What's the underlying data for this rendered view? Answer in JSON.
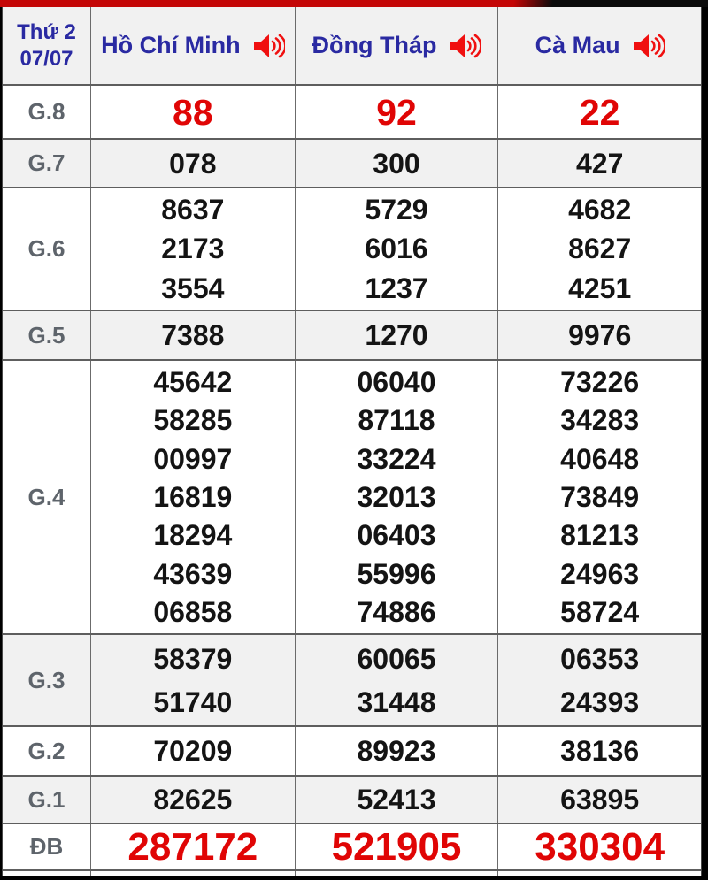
{
  "header": {
    "date_line1": "Thứ 2",
    "date_line2": "07/07",
    "columns": [
      {
        "key": "ho-chi-minh",
        "name": "Hồ Chí Minh",
        "icon": "speaker-icon"
      },
      {
        "key": "dong-thap",
        "name": "Đồng Tháp",
        "icon": "speaker-icon"
      },
      {
        "key": "ca-mau",
        "name": "Cà Mau",
        "icon": "speaker-icon"
      }
    ]
  },
  "prizes": [
    {
      "key": "g8",
      "label": "G.8",
      "highlight": true,
      "values": [
        [
          "88"
        ],
        [
          "92"
        ],
        [
          "22"
        ]
      ]
    },
    {
      "key": "g7",
      "label": "G.7",
      "values": [
        [
          "078"
        ],
        [
          "300"
        ],
        [
          "427"
        ]
      ]
    },
    {
      "key": "g6",
      "label": "G.6",
      "values": [
        [
          "8637",
          "2173",
          "3554"
        ],
        [
          "5729",
          "6016",
          "1237"
        ],
        [
          "4682",
          "8627",
          "4251"
        ]
      ]
    },
    {
      "key": "g5",
      "label": "G.5",
      "values": [
        [
          "7388"
        ],
        [
          "1270"
        ],
        [
          "9976"
        ]
      ]
    },
    {
      "key": "g4",
      "label": "G.4",
      "values": [
        [
          "45642",
          "58285",
          "00997",
          "16819",
          "18294",
          "43639",
          "06858"
        ],
        [
          "06040",
          "87118",
          "33224",
          "32013",
          "06403",
          "55996",
          "74886"
        ],
        [
          "73226",
          "34283",
          "40648",
          "73849",
          "81213",
          "24963",
          "58724"
        ]
      ]
    },
    {
      "key": "g3",
      "label": "G.3",
      "values": [
        [
          "58379",
          "51740"
        ],
        [
          "60065",
          "31448"
        ],
        [
          "06353",
          "24393"
        ]
      ]
    },
    {
      "key": "g2",
      "label": "G.2",
      "values": [
        [
          "70209"
        ],
        [
          "89923"
        ],
        [
          "38136"
        ]
      ]
    },
    {
      "key": "g1",
      "label": "G.1",
      "values": [
        [
          "82625"
        ],
        [
          "52413"
        ],
        [
          "63895"
        ]
      ]
    },
    {
      "key": "db",
      "label": "ĐB",
      "highlight": true,
      "values": [
        [
          "287172"
        ],
        [
          "521905"
        ],
        [
          "330304"
        ]
      ]
    }
  ],
  "colors": {
    "top_strip_red": "#c40606",
    "top_strip_black": "#0b0b0b",
    "header_blue": "#2a2aa2",
    "speaker_red": "#f01010",
    "highlight_red": "#e00505",
    "number_black": "#141414",
    "label_gray": "#5e646b",
    "shaded_row_bg": "#f1f1f1"
  }
}
